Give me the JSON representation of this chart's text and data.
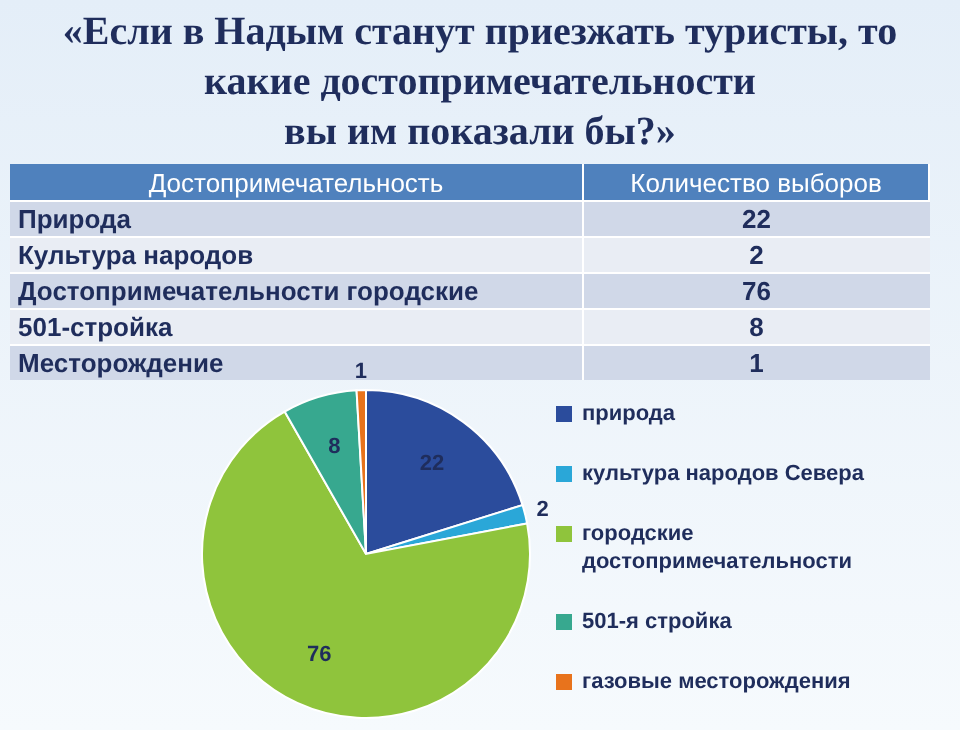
{
  "chart_data": [
    {
      "type": "other",
      "title": "«Если в Надым станут приезжать туристы, то\nкакие достопримечательности\nвы им показали бы?»",
      "annotations": [
        "Достопримечательность",
        "Количество выборов"
      ],
      "categories": [
        "Природа",
        "Культура народов",
        "Достопримечательности городские",
        "501-стройка",
        "Месторождение"
      ],
      "values": [
        22,
        2,
        76,
        8,
        1
      ],
      "data_labels": true
    },
    {
      "type": "pie",
      "categories": [
        "природа",
        "культура народов Севера",
        "городские достопримечательности",
        "501-я стройка",
        "газовые месторождения"
      ],
      "values": [
        22,
        2,
        76,
        8,
        1
      ],
      "colors": [
        "#2b4c9c",
        "#2aa7d8",
        "#8fc43c",
        "#37a88f",
        "#e8731c"
      ],
      "data_labels": true,
      "legend": "right"
    }
  ]
}
